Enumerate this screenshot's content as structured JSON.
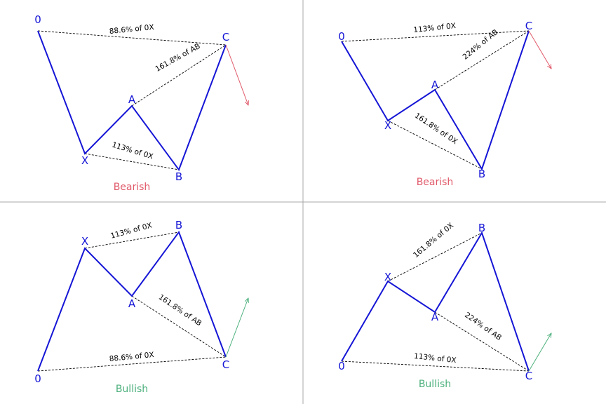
{
  "colors": {
    "line": "#1515d6",
    "bearish": "#e05a6a",
    "bullish": "#4cb07d",
    "divider": "#aaaaaa",
    "ratio_line": "#000000"
  },
  "panels": [
    {
      "id": "top-left",
      "caption": "Bearish",
      "caption_color": "bearish",
      "points": {
        "0": "0",
        "X": "X",
        "A": "A",
        "B": "B",
        "C": "C"
      },
      "ratios": [
        "88.6% of 0X",
        "161.8% of AB",
        "113% of 0X"
      ]
    },
    {
      "id": "top-right",
      "caption": "Bearish",
      "caption_color": "bearish",
      "points": {
        "0": "0",
        "X": "X",
        "A": "A",
        "B": "B",
        "C": "C"
      },
      "ratios": [
        "113% of 0X",
        "224% of AB",
        "161.8% of 0X"
      ]
    },
    {
      "id": "bottom-left",
      "caption": "Bullish",
      "caption_color": "bullish",
      "points": {
        "0": "0",
        "X": "X",
        "A": "A",
        "B": "B",
        "C": "C"
      },
      "ratios": [
        "113% of 0X",
        "161.8% of AB",
        "88.6% of 0X"
      ]
    },
    {
      "id": "bottom-right",
      "caption": "Bullish",
      "caption_color": "bullish",
      "points": {
        "0": "0",
        "X": "X",
        "A": "A",
        "B": "B",
        "C": "C"
      },
      "ratios": [
        "161.8% of 0X",
        "224% of AB",
        "113% of 0X"
      ]
    }
  ]
}
